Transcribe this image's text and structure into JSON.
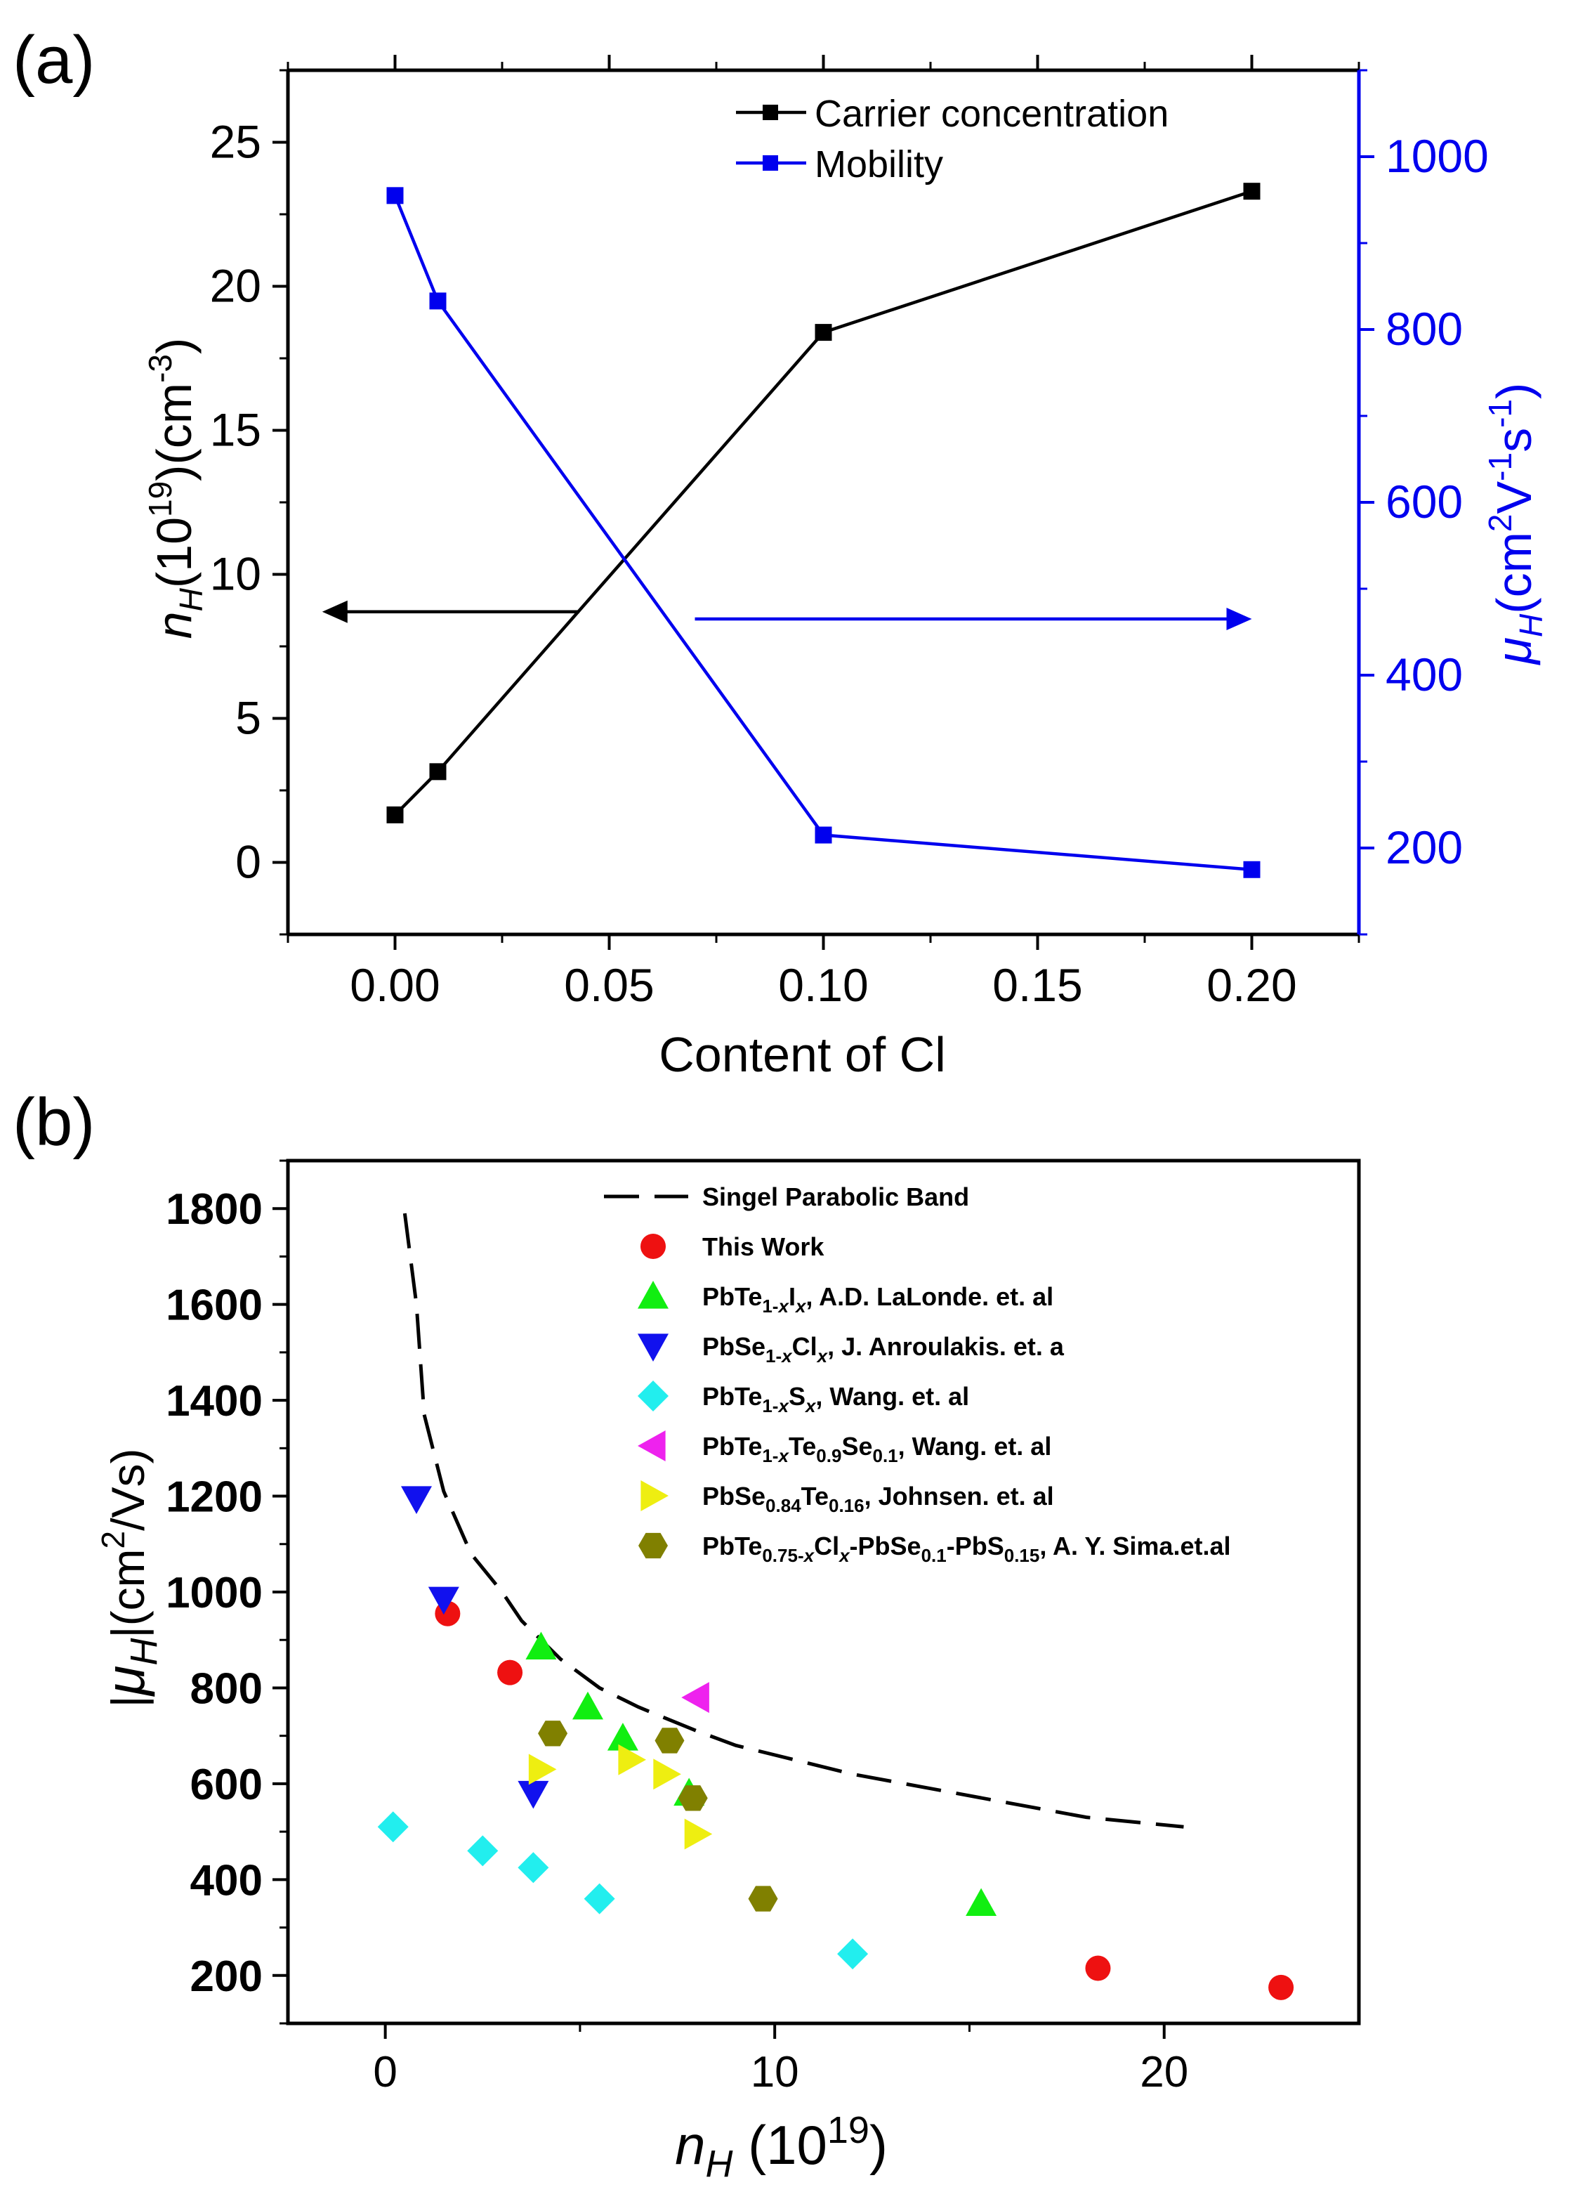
{
  "chart_data": [
    {
      "panel": "(a)",
      "type": "line",
      "title": "",
      "xlabel": "Content of Cl",
      "ylabel": "n_H (10^19)(cm^-3)",
      "ylabel_parts": {
        "var": "n",
        "sub": "H",
        "pre": "(10",
        "sup1": "19",
        "mid": ")(cm",
        "sup2": "-3",
        "post": ")"
      },
      "y2label": "μ_H (cm^2V^-1s^-1)",
      "y2label_parts": {
        "var": "μ",
        "sub": "H",
        "a": "(cm",
        "s1": "2",
        "b": "V",
        "s2": "-1",
        "c": "s",
        "s3": "-1",
        "d": ")"
      },
      "xlim": [
        -0.025,
        0.225
      ],
      "ylim": [
        -2.5,
        27.5
      ],
      "y2lim": [
        100,
        1100
      ],
      "x_ticks": [
        0.0,
        0.05,
        0.1,
        0.15,
        0.2
      ],
      "x_tick_labels": [
        "0.00",
        "0.05",
        "0.10",
        "0.15",
        "0.20"
      ],
      "y_ticks": [
        0,
        5,
        10,
        15,
        20,
        25
      ],
      "y_tick_labels": [
        "0",
        "5",
        "10",
        "15",
        "20",
        "25"
      ],
      "y2_ticks": [
        200,
        400,
        600,
        800,
        1000
      ],
      "y2_tick_labels": [
        "200",
        "400",
        "600",
        "800",
        "1000"
      ],
      "legend_position": "top-right",
      "series": [
        {
          "name": "Carrier concentration",
          "axis": "left",
          "color": "#000000",
          "marker": "square",
          "x": [
            0.0,
            0.01,
            0.1,
            0.2
          ],
          "values": [
            1.65,
            3.15,
            18.4,
            23.3
          ]
        },
        {
          "name": "Mobility",
          "axis": "right",
          "color": "#0000ee",
          "marker": "square",
          "x": [
            0.0,
            0.01,
            0.1,
            0.2
          ],
          "values": [
            955,
            833,
            215,
            175
          ]
        }
      ],
      "annotations": [
        {
          "type": "arrow",
          "direction": "left",
          "color": "#000000",
          "x_from": 0.043,
          "x_to": -0.017,
          "y": 8.7,
          "axis": "left"
        },
        {
          "type": "arrow",
          "direction": "right",
          "color": "#0000ee",
          "x_from": 0.07,
          "x_to": 0.2,
          "y": 465,
          "axis": "right"
        }
      ]
    },
    {
      "panel": "(b)",
      "type": "scatter",
      "title": "",
      "xlabel": "n_H (10^19)",
      "xlabel_parts": {
        "var": "n",
        "sub": "H",
        "pre": " (10",
        "sup": "19",
        "post": ")"
      },
      "ylabel": "|μ_H|(cm^2/Vs)",
      "ylabel_parts": {
        "var": "μ",
        "sub": "H",
        "pre": "(cm",
        "sup": "2",
        "post": "/Vs)"
      },
      "xlim": [
        -2.5,
        25
      ],
      "ylim": [
        100,
        1900
      ],
      "x_ticks": [
        0,
        10,
        20
      ],
      "x_tick_labels": [
        "0",
        "10",
        "20"
      ],
      "y_ticks": [
        200,
        400,
        600,
        800,
        1000,
        1200,
        1400,
        1600,
        1800
      ],
      "y_tick_labels": [
        "200",
        "400",
        "600",
        "800",
        "1000",
        "1200",
        "1400",
        "1600",
        "1800"
      ],
      "legend_position": "top-right",
      "series": [
        {
          "name": "Singel Parabolic Band",
          "style": "dashed-line",
          "color": "#000000",
          "x": [
            0.5,
            0.8,
            1.0,
            1.5,
            2.2,
            3.0,
            3.5,
            4.5,
            5.5,
            6.5,
            8.0,
            9.0,
            10.5,
            12,
            14,
            16,
            18,
            20.5
          ],
          "values": [
            1790,
            1600,
            1370,
            1210,
            1080,
            1000,
            940,
            860,
            800,
            760,
            710,
            680,
            650,
            620,
            590,
            560,
            530,
            510
          ]
        },
        {
          "name": "This Work",
          "marker": "circle",
          "color": "#ee1111",
          "x": [
            1.6,
            3.2,
            18.3,
            23.0
          ],
          "values": [
            955,
            832,
            215,
            175
          ]
        },
        {
          "name": "PbTe1-xIx, A.D. LaLonde. et. al",
          "marker": "triangle-up",
          "color": "#11ee11",
          "x": [
            4.0,
            5.2,
            6.1,
            7.8,
            15.3
          ],
          "values": [
            885,
            760,
            695,
            580,
            350
          ]
        },
        {
          "name": "PbSe1-xClx, J. Anroulakis. et. a",
          "marker": "triangle-down",
          "color": "#1111ee",
          "x": [
            0.8,
            1.5,
            3.8
          ],
          "values": [
            1195,
            985,
            580
          ]
        },
        {
          "name": "PbTe1-xSx, Wang. et. al",
          "marker": "diamond",
          "color": "#22eeee",
          "x": [
            0.2,
            2.5,
            3.8,
            5.5,
            12.0
          ],
          "values": [
            510,
            460,
            425,
            360,
            245
          ]
        },
        {
          "name": "PbTe1-xTe0.9Se0.1, Wang. et. al",
          "marker": "triangle-left",
          "color": "#ee22ee",
          "x": [
            8.0
          ],
          "values": [
            780
          ]
        },
        {
          "name": "PbSe0.84Te0.16, Johnsen. et. al",
          "marker": "triangle-right",
          "color": "#eeee11",
          "x": [
            4.0,
            6.3,
            7.2,
            8.0
          ],
          "values": [
            630,
            650,
            620,
            495
          ]
        },
        {
          "name": "PbTe0.75-xClx-PbSe0.1-PbS0.15, A. Y. Sima.et.al",
          "marker": "hexagon",
          "color": "#808000",
          "x": [
            4.3,
            7.3,
            7.9,
            9.7
          ],
          "values": [
            705,
            690,
            570,
            360
          ]
        }
      ],
      "legend_labels": [
        {
          "name": "Singel Parabolic Band",
          "parts": [
            [
              "n",
              "Singel Parabolic Band"
            ]
          ]
        },
        {
          "name": "This Work",
          "parts": [
            [
              "n",
              "This Work"
            ]
          ]
        },
        {
          "name": "PbTe1-xIx",
          "parts": [
            [
              "n",
              "PbTe"
            ],
            [
              "sub",
              "1-"
            ],
            [
              "subi",
              "x"
            ],
            [
              "n",
              "I"
            ],
            [
              "subi",
              "x"
            ],
            [
              "n",
              ", A.D. LaLonde. et. al"
            ]
          ]
        },
        {
          "name": "PbSe1-xClx",
          "parts": [
            [
              "n",
              "PbSe"
            ],
            [
              "sub",
              "1-"
            ],
            [
              "subi",
              "x"
            ],
            [
              "n",
              "Cl"
            ],
            [
              "subi",
              "x"
            ],
            [
              "n",
              ", J. Anroulakis. et. a"
            ]
          ]
        },
        {
          "name": "PbTe1-xSx",
          "parts": [
            [
              "n",
              "PbTe"
            ],
            [
              "sub",
              "1-"
            ],
            [
              "subi",
              "x"
            ],
            [
              "n",
              "S"
            ],
            [
              "subi",
              "x"
            ],
            [
              "n",
              ", Wang. et. al"
            ]
          ]
        },
        {
          "name": "PbTe1-xTe0.9Se0.1",
          "parts": [
            [
              "n",
              "PbTe"
            ],
            [
              "sub",
              "1-"
            ],
            [
              "subi",
              "x"
            ],
            [
              "n",
              "Te"
            ],
            [
              "sub",
              "0.9"
            ],
            [
              "n",
              "Se"
            ],
            [
              "sub",
              "0.1"
            ],
            [
              "n",
              ", Wang. et. al"
            ]
          ]
        },
        {
          "name": "PbSe0.84Te0.16",
          "parts": [
            [
              "n",
              "PbSe"
            ],
            [
              "sub",
              "0.84"
            ],
            [
              "n",
              "Te"
            ],
            [
              "sub",
              "0.16"
            ],
            [
              "n",
              ", Johnsen. et. al"
            ]
          ]
        },
        {
          "name": "PbTe0.75-xClx-PbSe0.1-PbS0.15",
          "parts": [
            [
              "n",
              "PbTe"
            ],
            [
              "sub",
              "0.75-"
            ],
            [
              "subi",
              "x"
            ],
            [
              "n",
              "Cl"
            ],
            [
              "subi",
              "x"
            ],
            [
              "n",
              "-PbSe"
            ],
            [
              "sub",
              "0.1"
            ],
            [
              "n",
              "-PbS"
            ],
            [
              "sub",
              "0.15"
            ],
            [
              "n",
              ", A. Y. Sima.et.al"
            ]
          ]
        }
      ]
    }
  ]
}
